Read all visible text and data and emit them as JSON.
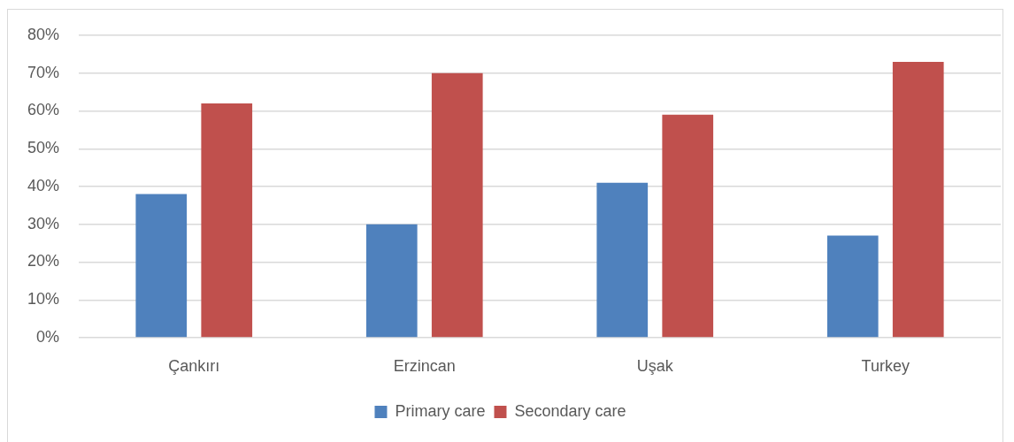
{
  "chart_data": {
    "type": "bar",
    "categories": [
      "Çankırı",
      "Erzincan",
      "Uşak",
      "Turkey"
    ],
    "series": [
      {
        "name": "Primary care",
        "color": "#4f81bd",
        "values": [
          38,
          30,
          41,
          27
        ]
      },
      {
        "name": "Secondary care",
        "color": "#c0504d",
        "values": [
          62,
          70,
          59,
          73
        ]
      }
    ],
    "ylim": [
      0,
      80
    ],
    "yticks": [
      {
        "value": 0,
        "label": "0%"
      },
      {
        "value": 10,
        "label": "10%"
      },
      {
        "value": 20,
        "label": "20%"
      },
      {
        "value": 30,
        "label": "30%"
      },
      {
        "value": 40,
        "label": "40%"
      },
      {
        "value": 50,
        "label": "50%"
      },
      {
        "value": 60,
        "label": "60%"
      },
      {
        "value": 70,
        "label": "70%"
      },
      {
        "value": 80,
        "label": "80%"
      }
    ],
    "grid": "y",
    "legend": "bottom"
  }
}
